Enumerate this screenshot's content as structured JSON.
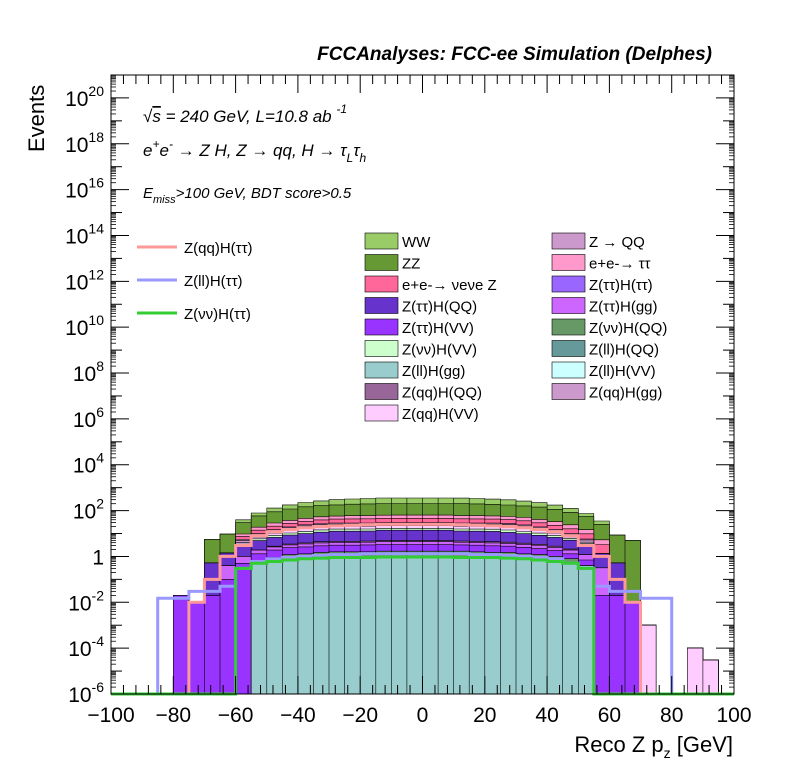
{
  "chart_data": {
    "type": "area",
    "title": "FCCAnalyses: FCC-ee Simulation (Delphes)",
    "xlabel": "Reco Z p_z [GeV]",
    "ylabel": "Events",
    "xlim": [
      -100,
      100
    ],
    "ylim": [
      1e-06,
      1e+21
    ],
    "log_y": true,
    "x_ticks": [
      -100,
      -80,
      -60,
      -40,
      -20,
      0,
      20,
      40,
      60,
      80,
      100
    ],
    "y_tick_labels": [
      {
        "v": 1e-06,
        "label": "10-6",
        "base": "10",
        "exp": "-6"
      },
      {
        "v": 0.0001,
        "label": "10-4",
        "base": "10",
        "exp": "-4"
      },
      {
        "v": 0.01,
        "label": "10-2",
        "base": "10",
        "exp": "-2"
      },
      {
        "v": 1,
        "label": "1",
        "base": "1",
        "exp": ""
      },
      {
        "v": 100.0,
        "label": "102",
        "base": "10",
        "exp": "2"
      },
      {
        "v": 10000.0,
        "label": "104",
        "base": "10",
        "exp": "4"
      },
      {
        "v": 1000000.0,
        "label": "106",
        "base": "10",
        "exp": "6"
      },
      {
        "v": 100000000.0,
        "label": "108",
        "base": "10",
        "exp": "8"
      },
      {
        "v": 10000000000.0,
        "label": "1010",
        "base": "10",
        "exp": "10"
      },
      {
        "v": 1000000000000.0,
        "label": "1012",
        "base": "10",
        "exp": "12"
      },
      {
        "v": 100000000000000.0,
        "label": "1014",
        "base": "10",
        "exp": "14"
      },
      {
        "v": 1e+16,
        "label": "1016",
        "base": "10",
        "exp": "16"
      },
      {
        "v": 1e+18,
        "label": "1018",
        "base": "10",
        "exp": "18"
      },
      {
        "v": 1e+20,
        "label": "1020",
        "base": "10",
        "exp": "20"
      }
    ],
    "annotations": [
      "√s = 240 GeV, L=10.8 ab -1",
      "e+e- → Z H, Z → qq, H → τLτh",
      "Emiss>100 GeV, BDT score>0.5"
    ],
    "bin_edges_note": "",
    "bins": [
      -100,
      -95,
      -90,
      -85,
      -80,
      -75,
      -70,
      -65,
      -60,
      -55,
      -50,
      -45,
      -40,
      -35,
      -30,
      -25,
      -20,
      -15,
      -10,
      -5,
      0,
      5,
      10,
      15,
      20,
      25,
      30,
      35,
      40,
      45,
      50,
      55,
      60,
      65,
      70,
      75,
      80,
      85,
      90,
      95,
      100
    ],
    "stack_series": [
      {
        "name": "Z(ll)H(gg)",
        "color": "#99cccc",
        "values": [
          0,
          0,
          0,
          0,
          0,
          0,
          0,
          0,
          0,
          0.5,
          0.6,
          0.7,
          0.8,
          0.9,
          1.0,
          1.0,
          1.0,
          1.0,
          1.0,
          1.0,
          1.0,
          1.0,
          1.0,
          1.0,
          0.9,
          0.9,
          0.8,
          0.7,
          0.6,
          0.5,
          0.4,
          0,
          0,
          0,
          0,
          0,
          0,
          0,
          0,
          0
        ]
      },
      {
        "name": "Z(νν)H(QQ)",
        "color": "#669966",
        "values": [
          0,
          0,
          0,
          0,
          0,
          0,
          0,
          0,
          0,
          0,
          0.3,
          0.5,
          0.5,
          0.6,
          0.6,
          0.6,
          0.6,
          0.7,
          0.7,
          0.7,
          0.7,
          0.7,
          0.7,
          0.6,
          0.6,
          0.6,
          0.5,
          0.5,
          0.4,
          0.3,
          0,
          0,
          0,
          0,
          0,
          0,
          0,
          0,
          0,
          0
        ]
      },
      {
        "name": "Z(ττ)H(VV)",
        "color": "#9933ff",
        "values": [
          0,
          0,
          0,
          0,
          0.02,
          0.01,
          0.02,
          0.1,
          0.5,
          0.8,
          1.0,
          1.2,
          1.3,
          1.4,
          1.5,
          1.5,
          1.6,
          1.6,
          1.6,
          1.6,
          1.6,
          1.6,
          1.5,
          1.5,
          1.4,
          1.3,
          1.2,
          1.0,
          0.8,
          0.5,
          0.3,
          0.02,
          0.02,
          0.01,
          0,
          0,
          0,
          0,
          0,
          0
        ]
      },
      {
        "name": "Z(ττ)H(gg)",
        "color": "#cc66ff",
        "values": [
          0,
          0,
          0,
          0,
          0,
          0,
          0,
          0.3,
          0.5,
          0.6,
          0.7,
          0.8,
          0.9,
          1.0,
          1.0,
          1.0,
          1.0,
          1.1,
          1.1,
          1.1,
          1.1,
          1.1,
          1.0,
          1.0,
          1.0,
          0.9,
          0.9,
          0.8,
          0.7,
          0.6,
          0.5,
          0.3,
          0,
          0,
          0,
          0,
          0,
          0,
          0,
          0
        ]
      },
      {
        "name": "Z(qq)H(QQ)",
        "color": "#996699",
        "values": [
          0,
          0,
          0,
          0,
          0,
          0,
          0,
          0,
          0,
          0,
          0.2,
          0.3,
          0.4,
          0.5,
          0.5,
          0.5,
          0.5,
          0.5,
          0.5,
          0.5,
          0.5,
          0.5,
          0.5,
          0.5,
          0.5,
          0.5,
          0.4,
          0.4,
          0.3,
          0.2,
          0.0001,
          0,
          0.0001,
          0,
          0,
          0,
          0,
          0,
          0,
          0
        ]
      },
      {
        "name": "Z(ττ)H(QQ)",
        "color": "#6633cc",
        "values": [
          0,
          0,
          0,
          0,
          0,
          0,
          0.5,
          1,
          2,
          3,
          4,
          5,
          6,
          7,
          8,
          8,
          8,
          9,
          9,
          9,
          9,
          9,
          8,
          8,
          8,
          7,
          6,
          5,
          4,
          3,
          2,
          1,
          0.5,
          0,
          0,
          0,
          0,
          0,
          0,
          0
        ]
      },
      {
        "name": "Z(νν)H(VV)",
        "color": "#ccffcc",
        "values": [
          0,
          0,
          0,
          0,
          0,
          0,
          0,
          0,
          0.5,
          1,
          1.5,
          2,
          2.5,
          3,
          3,
          3,
          3,
          3,
          3,
          3,
          3,
          3,
          3,
          3,
          3,
          3,
          2.5,
          2,
          1.5,
          1,
          0.5,
          0,
          0,
          0,
          0,
          0,
          0,
          0,
          0,
          0
        ]
      },
      {
        "name": "Z(qq)H(VV)",
        "color": "#ffccff",
        "values": [
          0,
          0,
          0,
          0,
          0,
          0,
          0,
          0,
          0.5,
          1,
          2,
          3,
          4,
          5,
          5,
          5,
          5,
          5,
          5,
          5,
          5,
          5,
          5,
          5,
          5,
          5,
          4,
          3,
          2,
          1,
          0.5,
          0,
          0,
          0,
          0.001,
          0,
          0,
          0.0001,
          3e-05,
          0
        ]
      },
      {
        "name": "Z → QQ",
        "color": "#cc99cc",
        "values": [
          0,
          0,
          0,
          0,
          0,
          0,
          0,
          0,
          1,
          2,
          3,
          4,
          5,
          5,
          5,
          5,
          5,
          5,
          5,
          5,
          5,
          5,
          5,
          5,
          5,
          5,
          5,
          4,
          3,
          2,
          1,
          0,
          0,
          0,
          0,
          0,
          0,
          0,
          0,
          0
        ]
      },
      {
        "name": "Z(qq)H(gg)",
        "color": "#cc99cc",
        "values": [
          0,
          0,
          0,
          0,
          0,
          0,
          0,
          0,
          0.5,
          1,
          1.5,
          2,
          2.5,
          3,
          3,
          3,
          3,
          3,
          3,
          3,
          3,
          3,
          3,
          3,
          3,
          3,
          2.5,
          2,
          1.5,
          1,
          0.5,
          0,
          0,
          0,
          0,
          0,
          0,
          0,
          0,
          0
        ]
      },
      {
        "name": "e+e-→ νeνe Z",
        "color": "#ff6699",
        "values": [
          0,
          0,
          0,
          0,
          0,
          0,
          0,
          0,
          2,
          4,
          6,
          8,
          10,
          12,
          14,
          15,
          15,
          16,
          16,
          16,
          16,
          16,
          15,
          15,
          14,
          13,
          12,
          10,
          8,
          6,
          4,
          2,
          0,
          0,
          0,
          0,
          0,
          0,
          0,
          0
        ]
      },
      {
        "name": "e+e-→ ττ",
        "color": "#ff99cc",
        "values": [
          0,
          0,
          0,
          0,
          0,
          0,
          0,
          0,
          2,
          5,
          8,
          10,
          12,
          14,
          15,
          16,
          17,
          17,
          18,
          18,
          18,
          18,
          17,
          17,
          16,
          15,
          14,
          12,
          10,
          8,
          5,
          2,
          0,
          0,
          0,
          0,
          0,
          0,
          0,
          0
        ]
      },
      {
        "name": "ZZ",
        "color": "#669933",
        "values": [
          0,
          0,
          0,
          0,
          0,
          0,
          5,
          8,
          20,
          40,
          60,
          80,
          100,
          110,
          120,
          130,
          135,
          140,
          140,
          140,
          140,
          140,
          140,
          135,
          130,
          120,
          110,
          100,
          80,
          60,
          40,
          20,
          8,
          5,
          0,
          0,
          0,
          0,
          0,
          0
        ]
      },
      {
        "name": "WW",
        "color": "#99cc66",
        "values": [
          0,
          0,
          0,
          0,
          0,
          0,
          0,
          0,
          10,
          20,
          40,
          60,
          80,
          100,
          120,
          130,
          140,
          150,
          150,
          150,
          150,
          150,
          150,
          140,
          130,
          120,
          100,
          80,
          60,
          40,
          20,
          10,
          0,
          0,
          0,
          0,
          0,
          0,
          0,
          0
        ]
      }
    ],
    "line_series": [
      {
        "name": "Z(qq)H(ττ)",
        "color": "#ff9999",
        "values": [
          0,
          0,
          0,
          0,
          0,
          0.01,
          0.1,
          1,
          3,
          8,
          12,
          15,
          18,
          20,
          22,
          23,
          24,
          25,
          25,
          25,
          25,
          25,
          24,
          23,
          22,
          20,
          18,
          15,
          12,
          8,
          3,
          1,
          0.1,
          0.01,
          0,
          0,
          0,
          0,
          0,
          0
        ]
      },
      {
        "name": "Z(ll)H(ττ)",
        "color": "#9999ff",
        "values": [
          0,
          0,
          0,
          0.015,
          0.015,
          0.03,
          0.03,
          0.05,
          0.3,
          0.6,
          0.8,
          0.9,
          1.0,
          1.1,
          1.2,
          1.2,
          1.3,
          1.3,
          1.3,
          1.3,
          1.3,
          1.3,
          1.3,
          1.2,
          1.2,
          1.1,
          1.0,
          0.9,
          0.8,
          0.5,
          0.3,
          0.05,
          0.03,
          0.03,
          0.015,
          0.015,
          0,
          0,
          0,
          0
        ]
      },
      {
        "name": "Z(νν)H(ττ)",
        "color": "#33cc33",
        "values": [
          0,
          0,
          0,
          0,
          0,
          0,
          0,
          0,
          0.3,
          0.5,
          0.6,
          0.7,
          0.8,
          0.85,
          0.9,
          0.9,
          0.9,
          0.95,
          0.95,
          0.95,
          0.95,
          0.95,
          0.9,
          0.9,
          0.9,
          0.85,
          0.8,
          0.7,
          0.6,
          0.5,
          0.3,
          0,
          0,
          0,
          0,
          0,
          0,
          0,
          0,
          0
        ]
      }
    ],
    "legend_columns": [
      [
        "WW",
        "ZZ",
        "e+e-→ νeνe Z",
        "Z(ττ)H(QQ)",
        "Z(ττ)H(VV)",
        "Z(νν)H(VV)",
        "Z(ll)H(gg)",
        "Z(qq)H(QQ)",
        "Z(qq)H(VV)"
      ],
      [
        "Z → QQ",
        "e+e-→ ττ",
        "Z(ττ)H(ττ)",
        "Z(ττ)H(gg)",
        "Z(νν)H(QQ)",
        "Z(ll)H(QQ)",
        "Z(ll)H(VV)",
        "Z(qq)H(gg)"
      ]
    ],
    "legend_colors": {
      "WW": "#99cc66",
      "ZZ": "#669933",
      "e+e-→ νeνe Z": "#ff6699",
      "Z(ττ)H(QQ)": "#6633cc",
      "Z(ττ)H(VV)": "#9933ff",
      "Z(νν)H(VV)": "#ccffcc",
      "Z(ll)H(gg)": "#99cccc",
      "Z(qq)H(QQ)": "#996699",
      "Z(qq)H(VV)": "#ffccff",
      "Z → QQ": "#cc99cc",
      "e+e-→ ττ": "#ff99cc",
      "Z(ττ)H(ττ)": "#9966ff",
      "Z(ττ)H(gg)": "#cc66ff",
      "Z(νν)H(QQ)": "#669966",
      "Z(ll)H(QQ)": "#669999",
      "Z(ll)H(VV)": "#ccffff",
      "Z(qq)H(gg)": "#cc99cc"
    },
    "legend_placement": "top"
  }
}
